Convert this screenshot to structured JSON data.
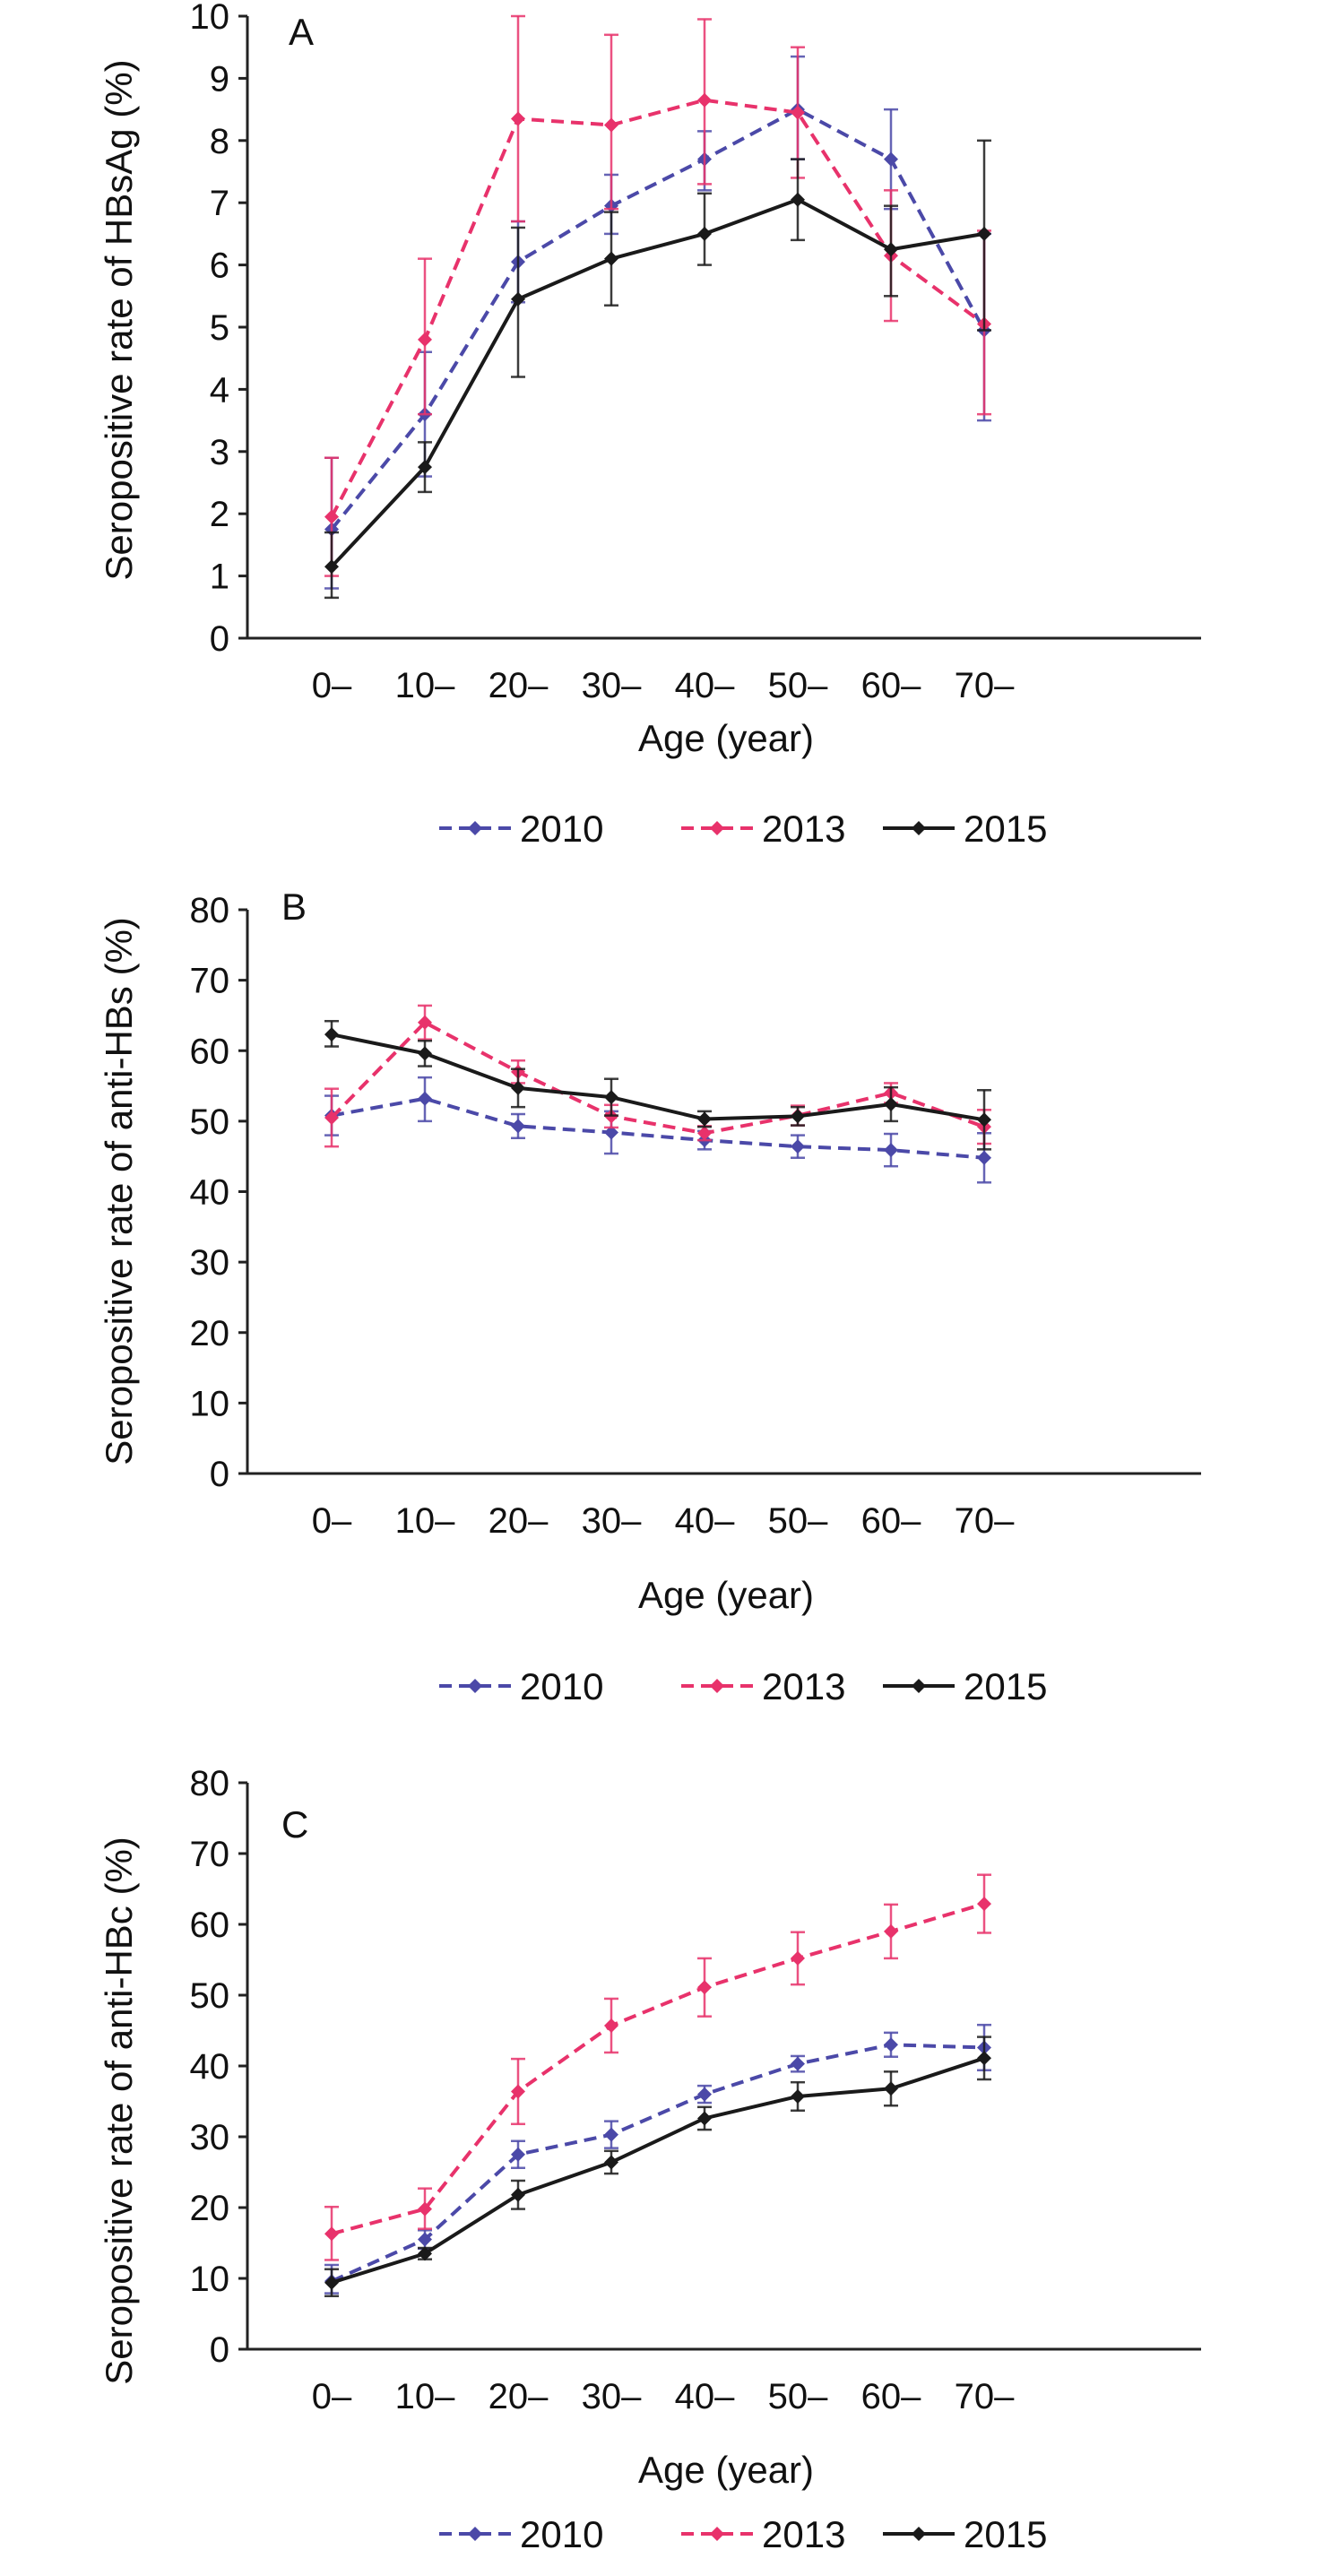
{
  "chart_data": [
    {
      "type": "line",
      "panel": "A",
      "categories": [
        "0–",
        "10–",
        "20–",
        "30–",
        "40–",
        "50–",
        "60–",
        "70–"
      ],
      "xlabel": "Age (year)",
      "ylabel": "Seropositive rate of HBsAg (%)",
      "ylim": [
        0,
        10
      ],
      "yticks": [
        0,
        1,
        2,
        3,
        4,
        5,
        6,
        7,
        8,
        9,
        10
      ],
      "grid": false,
      "legend_position": "bottom",
      "series": [
        {
          "name": "2010",
          "color": "#4b49a8",
          "values": [
            1.75,
            3.6,
            6.05,
            6.95,
            7.7,
            8.5,
            7.7,
            4.95
          ],
          "error_low": [
            0.8,
            2.6,
            5.4,
            6.5,
            7.2,
            7.7,
            6.9,
            3.5
          ],
          "error_high": [
            2.9,
            4.6,
            6.7,
            7.45,
            8.15,
            9.35,
            8.5,
            6.5
          ]
        },
        {
          "name": "2013",
          "color": "#e8326b",
          "values": [
            1.95,
            4.8,
            8.35,
            8.25,
            8.65,
            8.45,
            6.15,
            5.05
          ],
          "error_low": [
            1.0,
            3.6,
            6.7,
            6.9,
            7.3,
            7.4,
            5.1,
            3.6
          ],
          "error_high": [
            2.9,
            6.1,
            10.0,
            9.7,
            9.95,
            9.5,
            7.2,
            6.55
          ]
        },
        {
          "name": "2015",
          "color": "#1a1a1a",
          "values": [
            1.15,
            2.75,
            5.45,
            6.1,
            6.5,
            7.05,
            6.25,
            6.5
          ],
          "error_low": [
            0.65,
            2.35,
            4.2,
            5.35,
            6.0,
            6.4,
            5.5,
            4.95
          ],
          "error_high": [
            1.7,
            3.15,
            6.6,
            6.85,
            7.15,
            7.7,
            6.95,
            8.0
          ]
        }
      ]
    },
    {
      "type": "line",
      "panel": "B",
      "categories": [
        "0–",
        "10–",
        "20–",
        "30–",
        "40–",
        "50–",
        "60–",
        "70–"
      ],
      "xlabel": "Age (year)",
      "ylabel": "Seropositive rate of anti-HBs (%)",
      "ylim": [
        0,
        80
      ],
      "yticks": [
        0,
        10,
        20,
        30,
        40,
        50,
        60,
        70,
        80
      ],
      "grid": false,
      "legend_position": "bottom",
      "series": [
        {
          "name": "2010",
          "color": "#4b49a8",
          "values": [
            50.8,
            53.2,
            49.3,
            48.4,
            47.3,
            46.4,
            45.9,
            44.8
          ],
          "error_low": [
            48.0,
            50.0,
            47.6,
            45.4,
            46.0,
            44.8,
            43.6,
            41.3
          ],
          "error_high": [
            53.6,
            56.2,
            51.0,
            51.4,
            48.6,
            48.0,
            48.2,
            48.3
          ]
        },
        {
          "name": "2013",
          "color": "#e8326b",
          "values": [
            50.5,
            64.0,
            57.0,
            50.7,
            48.3,
            50.8,
            54.0,
            49.2
          ],
          "error_low": [
            46.4,
            61.6,
            55.4,
            49.1,
            47.3,
            49.4,
            52.6,
            46.8
          ],
          "error_high": [
            54.6,
            66.4,
            58.6,
            52.3,
            49.3,
            52.2,
            55.4,
            51.6
          ]
        },
        {
          "name": "2015",
          "color": "#1a1a1a",
          "values": [
            62.3,
            59.6,
            54.7,
            53.4,
            50.3,
            50.7,
            52.4,
            50.2
          ],
          "error_low": [
            60.6,
            57.8,
            52.0,
            50.8,
            49.2,
            49.4,
            50.0,
            46.0
          ],
          "error_high": [
            64.2,
            61.4,
            57.4,
            56.0,
            51.4,
            52.0,
            54.8,
            54.4
          ]
        }
      ]
    },
    {
      "type": "line",
      "panel": "C",
      "categories": [
        "0–",
        "10–",
        "20–",
        "30–",
        "40–",
        "50–",
        "60–",
        "70–"
      ],
      "xlabel": "Age (year)",
      "ylabel": "Seropositive rate of anti-HBc (%)",
      "ylim": [
        0,
        80
      ],
      "yticks": [
        0,
        10,
        20,
        30,
        40,
        50,
        60,
        70,
        80
      ],
      "grid": false,
      "legend_position": "bottom",
      "series": [
        {
          "name": "2010",
          "color": "#4b49a8",
          "values": [
            9.6,
            15.5,
            27.5,
            30.3,
            36.0,
            40.3,
            43.0,
            42.6
          ],
          "error_low": [
            7.9,
            14.2,
            25.6,
            28.4,
            34.8,
            39.2,
            41.3,
            39.4
          ],
          "error_high": [
            11.9,
            16.8,
            29.4,
            32.2,
            37.2,
            41.4,
            44.7,
            45.8
          ]
        },
        {
          "name": "2013",
          "color": "#e8326b",
          "values": [
            16.3,
            19.8,
            36.4,
            45.7,
            51.1,
            55.2,
            59.0,
            62.9
          ],
          "error_low": [
            12.6,
            17.0,
            31.8,
            41.9,
            47.0,
            51.5,
            55.2,
            58.8
          ],
          "error_high": [
            20.1,
            22.7,
            41.0,
            49.5,
            55.2,
            58.9,
            62.8,
            67.0
          ]
        },
        {
          "name": "2015",
          "color": "#1a1a1a",
          "values": [
            9.4,
            13.5,
            21.8,
            26.4,
            32.6,
            35.7,
            36.8,
            41.1
          ],
          "error_low": [
            7.5,
            12.7,
            19.8,
            24.8,
            31.0,
            33.7,
            34.4,
            38.1
          ],
          "error_high": [
            11.3,
            14.3,
            23.8,
            28.0,
            34.2,
            37.7,
            39.2,
            44.1
          ]
        }
      ]
    }
  ]
}
